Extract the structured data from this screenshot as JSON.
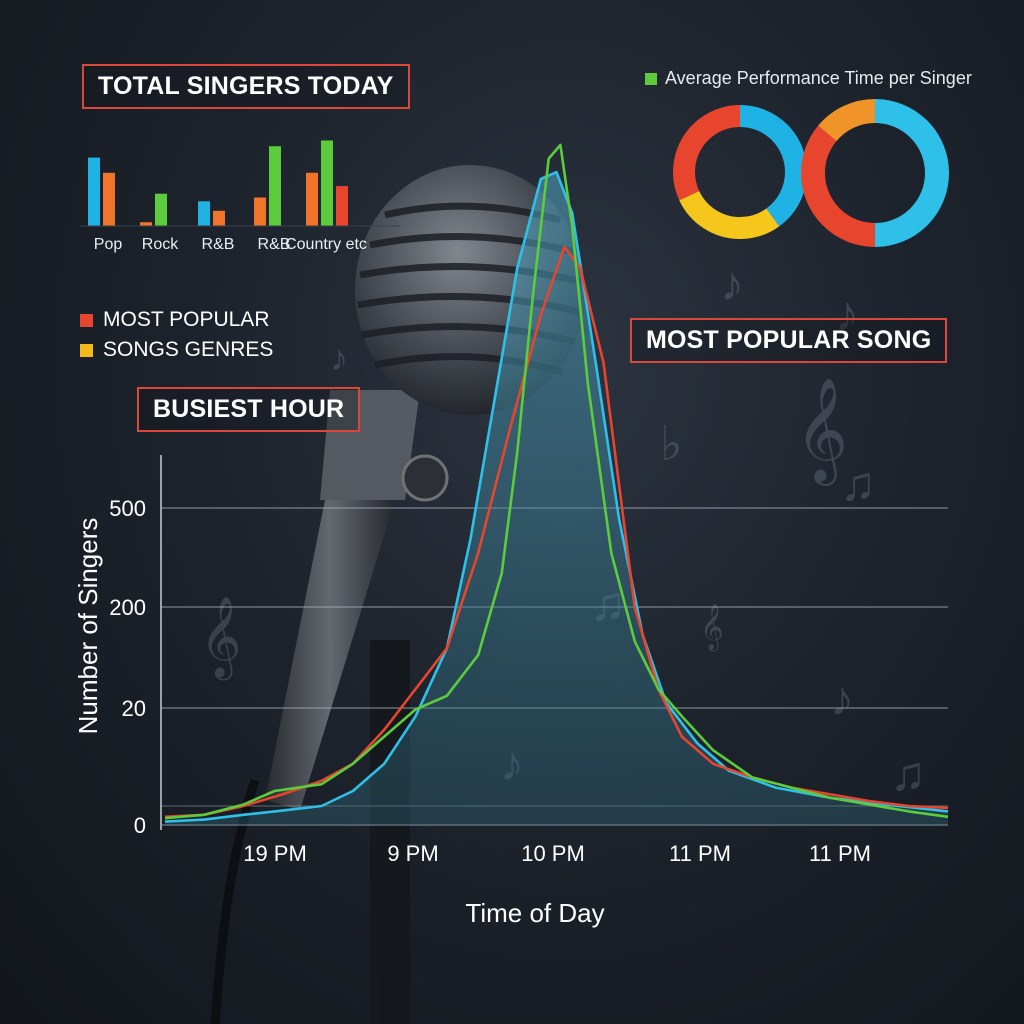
{
  "labels": {
    "total_singers": "TOTAL SINGERS TODAY",
    "most_popular_song": "MOST POPULAR SONG",
    "busiest_hour": "BUSIEST HOUR"
  },
  "genre_legend": [
    {
      "label": "MOST POPULAR",
      "color": "#e8452f"
    },
    {
      "label": "SONGS GENRES",
      "color": "#f5b81c"
    }
  ],
  "colors": {
    "blue": "#1fb3e5",
    "orange": "#f0742a",
    "green": "#5ccc3c",
    "red": "#e8452f",
    "yellow": "#f5c71c",
    "cyan": "#2ec0e8"
  },
  "chart_data": [
    {
      "type": "bar",
      "title": "TOTAL SINGERS TODAY",
      "tick_labels": [
        "Pop",
        "Rock",
        "R&B",
        "R&B",
        "Country etc"
      ],
      "series": [
        {
          "color": "#1fb3e5",
          "values": [
            72,
            null,
            26,
            null,
            null
          ]
        },
        {
          "color": "#f0742a",
          "values": [
            56,
            4,
            16,
            30,
            56
          ]
        },
        {
          "color": "#5ccc3c",
          "values": [
            null,
            34,
            null,
            84,
            90
          ]
        },
        {
          "color": "#e8452f",
          "values": [
            null,
            null,
            null,
            null,
            42
          ]
        }
      ],
      "ylim": [
        0,
        100
      ],
      "grid": false
    },
    {
      "type": "pie",
      "title": "Average Performance Time per Singer",
      "donuts": [
        {
          "slices": [
            {
              "color": "#1fb3e5",
              "value": 40
            },
            {
              "color": "#f5c71c",
              "value": 28
            },
            {
              "color": "#e8452f",
              "value": 32
            }
          ]
        },
        {
          "slices": [
            {
              "color": "#2ec0e8",
              "value": 50
            },
            {
              "color": "#e8452f",
              "value": 36
            },
            {
              "color": "#f0942a",
              "value": 14
            }
          ]
        }
      ]
    },
    {
      "type": "line",
      "xlabel": "Time of Day",
      "ylabel": "Number of Singers",
      "x_tick_labels": [
        "19 PM",
        "9 PM",
        "10 PM",
        "11 PM",
        "11 PM"
      ],
      "y_tick_labels": [
        "0",
        "20",
        "200",
        "500"
      ],
      "grid": true,
      "series": [
        {
          "color": "#5ccc3c",
          "points": [
            [
              0,
              0.01
            ],
            [
              0.02,
              0.012
            ],
            [
              0.05,
              0.015
            ],
            [
              0.1,
              0.03
            ],
            [
              0.14,
              0.05
            ],
            [
              0.2,
              0.06
            ],
            [
              0.24,
              0.09
            ],
            [
              0.28,
              0.13
            ],
            [
              0.32,
              0.17
            ],
            [
              0.36,
              0.19
            ],
            [
              0.4,
              0.25
            ],
            [
              0.43,
              0.37
            ],
            [
              0.45,
              0.55
            ],
            [
              0.47,
              0.78
            ],
            [
              0.49,
              0.98
            ],
            [
              0.505,
              1.0
            ],
            [
              0.52,
              0.88
            ],
            [
              0.54,
              0.65
            ],
            [
              0.57,
              0.4
            ],
            [
              0.6,
              0.27
            ],
            [
              0.63,
              0.2
            ],
            [
              0.66,
              0.16
            ],
            [
              0.7,
              0.11
            ],
            [
              0.75,
              0.07
            ],
            [
              0.8,
              0.055
            ],
            [
              0.85,
              0.04
            ],
            [
              0.9,
              0.03
            ],
            [
              0.95,
              0.02
            ],
            [
              1.0,
              0.012
            ]
          ]
        },
        {
          "color": "#e8452f",
          "points": [
            [
              0,
              0.012
            ],
            [
              0.05,
              0.015
            ],
            [
              0.1,
              0.028
            ],
            [
              0.15,
              0.045
            ],
            [
              0.2,
              0.065
            ],
            [
              0.24,
              0.09
            ],
            [
              0.28,
              0.14
            ],
            [
              0.32,
              0.2
            ],
            [
              0.36,
              0.26
            ],
            [
              0.4,
              0.4
            ],
            [
              0.44,
              0.58
            ],
            [
              0.48,
              0.75
            ],
            [
              0.51,
              0.85
            ],
            [
              0.53,
              0.82
            ],
            [
              0.56,
              0.68
            ],
            [
              0.58,
              0.5
            ],
            [
              0.6,
              0.32
            ],
            [
              0.63,
              0.2
            ],
            [
              0.66,
              0.13
            ],
            [
              0.7,
              0.09
            ],
            [
              0.75,
              0.07
            ],
            [
              0.8,
              0.055
            ],
            [
              0.85,
              0.045
            ],
            [
              0.9,
              0.035
            ],
            [
              0.95,
              0.028
            ],
            [
              1.0,
              0.025
            ]
          ]
        },
        {
          "color": "#2ec0e8",
          "points": [
            [
              0,
              0.005
            ],
            [
              0.05,
              0.008
            ],
            [
              0.1,
              0.015
            ],
            [
              0.14,
              0.02
            ],
            [
              0.2,
              0.028
            ],
            [
              0.24,
              0.05
            ],
            [
              0.28,
              0.09
            ],
            [
              0.32,
              0.16
            ],
            [
              0.36,
              0.26
            ],
            [
              0.39,
              0.42
            ],
            [
              0.42,
              0.62
            ],
            [
              0.45,
              0.82
            ],
            [
              0.48,
              0.95
            ],
            [
              0.5,
              0.96
            ],
            [
              0.52,
              0.9
            ],
            [
              0.55,
              0.68
            ],
            [
              0.58,
              0.45
            ],
            [
              0.61,
              0.28
            ],
            [
              0.64,
              0.18
            ],
            [
              0.68,
              0.12
            ],
            [
              0.72,
              0.08
            ],
            [
              0.78,
              0.055
            ],
            [
              0.85,
              0.04
            ],
            [
              0.92,
              0.03
            ],
            [
              1.0,
              0.02
            ]
          ]
        }
      ]
    }
  ]
}
